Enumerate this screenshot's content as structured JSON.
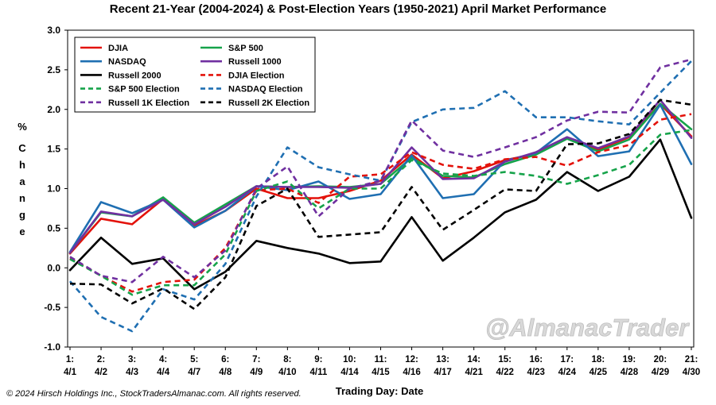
{
  "chart_data": {
    "type": "line",
    "title": "Recent 21-Year (2004-2024) & Post-Election Years (1950-2021) April Market Performance",
    "ylabel": "% Change",
    "xlabel": "Trading Day: Date",
    "ylim": [
      -1.0,
      3.0
    ],
    "yticks": [
      "3.0",
      "2.5",
      "2.0",
      "1.5",
      "1.0",
      "0.5",
      "0.0",
      "-0.5",
      "-1.0"
    ],
    "ytick_values": [
      3.0,
      2.5,
      2.0,
      1.5,
      1.0,
      0.5,
      0.0,
      -0.5,
      -1.0
    ],
    "categories_top": [
      "1:",
      "2:",
      "3:",
      "4:",
      "5:",
      "6:",
      "7:",
      "8:",
      "9:",
      "10:",
      "11:",
      "12:",
      "13:",
      "14:",
      "15:",
      "16:",
      "17:",
      "18:",
      "19:",
      "20:",
      "21:"
    ],
    "categories_bottom": [
      "4/1",
      "4/2",
      "4/3",
      "4/4",
      "4/7",
      "4/8",
      "4/9",
      "4/10",
      "4/11",
      "4/14",
      "4/15",
      "4/16",
      "4/17",
      "4/21",
      "4/22",
      "4/23",
      "4/24",
      "4/25",
      "4/28",
      "4/29",
      "4/30"
    ],
    "grid": false,
    "legend_position": "top-left",
    "series": [
      {
        "name": "DJIA",
        "color": "#e3120b",
        "dash": "solid",
        "values": [
          0.18,
          0.62,
          0.55,
          0.87,
          0.53,
          0.72,
          1.0,
          0.88,
          0.88,
          0.97,
          1.1,
          1.43,
          1.13,
          1.22,
          1.36,
          1.44,
          1.64,
          1.49,
          1.65,
          2.07,
          1.66
        ]
      },
      {
        "name": "S&P 500",
        "color": "#16a34a",
        "dash": "solid",
        "values": [
          0.19,
          0.7,
          0.65,
          0.89,
          0.57,
          0.8,
          1.03,
          1.02,
          1.03,
          1.02,
          1.06,
          1.39,
          1.16,
          1.14,
          1.31,
          1.43,
          1.63,
          1.47,
          1.62,
          2.07,
          1.75
        ]
      },
      {
        "name": "NASDAQ",
        "color": "#1f6fb2",
        "dash": "solid",
        "values": [
          0.2,
          0.83,
          0.69,
          0.86,
          0.51,
          0.72,
          1.03,
          0.98,
          1.09,
          0.87,
          0.93,
          1.42,
          0.88,
          0.93,
          1.35,
          1.45,
          1.75,
          1.41,
          1.47,
          2.06,
          1.31
        ]
      },
      {
        "name": "Russell 1000",
        "color": "#7030a0",
        "dash": "solid",
        "values": [
          0.19,
          0.71,
          0.65,
          0.86,
          0.55,
          0.77,
          1.03,
          1.02,
          1.02,
          1.01,
          1.06,
          1.52,
          1.12,
          1.13,
          1.34,
          1.46,
          1.65,
          1.51,
          1.66,
          2.12,
          1.64
        ]
      },
      {
        "name": "Russell 2000",
        "color": "#000000",
        "dash": "solid",
        "values": [
          -0.03,
          0.38,
          0.05,
          0.12,
          -0.27,
          -0.05,
          0.34,
          0.25,
          0.18,
          0.06,
          0.08,
          0.64,
          0.09,
          0.38,
          0.7,
          0.86,
          1.21,
          0.97,
          1.15,
          1.62,
          0.63
        ]
      },
      {
        "name": "DJIA Election",
        "color": "#e3120b",
        "dash": "dashed",
        "values": [
          0.12,
          -0.1,
          -0.3,
          -0.18,
          -0.15,
          0.25,
          0.98,
          1.0,
          0.82,
          1.15,
          1.18,
          1.46,
          1.3,
          1.25,
          1.37,
          1.4,
          1.29,
          1.46,
          1.55,
          1.87,
          1.94
        ]
      },
      {
        "name": "S&P 500 Election",
        "color": "#16a34a",
        "dash": "dashed",
        "values": [
          0.11,
          -0.1,
          -0.34,
          -0.22,
          -0.22,
          0.17,
          0.97,
          1.09,
          0.75,
          1.0,
          1.0,
          1.36,
          1.19,
          1.16,
          1.21,
          1.16,
          1.06,
          1.17,
          1.3,
          1.68,
          1.74
        ]
      },
      {
        "name": "NASDAQ Election",
        "color": "#1f6fb2",
        "dash": "dashed",
        "values": [
          -0.17,
          -0.62,
          -0.8,
          -0.27,
          -0.4,
          0.05,
          0.9,
          1.52,
          1.27,
          1.18,
          1.1,
          1.84,
          2.0,
          2.02,
          2.23,
          1.9,
          1.9,
          1.85,
          1.81,
          2.21,
          2.61
        ]
      },
      {
        "name": "Russell 1K Election",
        "color": "#7030a0",
        "dash": "dashed",
        "values": [
          0.14,
          -0.1,
          -0.18,
          0.14,
          -0.12,
          0.22,
          1.0,
          1.28,
          0.65,
          1.0,
          1.1,
          1.86,
          1.48,
          1.4,
          1.52,
          1.65,
          1.86,
          1.97,
          1.96,
          2.53,
          2.63
        ]
      },
      {
        "name": "Russell 2K Election",
        "color": "#000000",
        "dash": "dashed",
        "values": [
          -0.2,
          -0.21,
          -0.45,
          -0.26,
          -0.52,
          -0.12,
          0.78,
          1.0,
          0.39,
          0.42,
          0.45,
          1.02,
          0.48,
          0.73,
          0.99,
          0.97,
          1.56,
          1.57,
          1.69,
          2.12,
          2.06
        ]
      }
    ],
    "legend_order": [
      "DJIA",
      "S&P 500",
      "NASDAQ",
      "Russell 1000",
      "Russell 2000",
      "DJIA Election",
      "S&P 500 Election",
      "NASDAQ Election",
      "Russell 1K Election",
      "Russell 2K Election"
    ]
  },
  "watermark": "@AlmanacTrader",
  "copyright": "© 2024 Hirsch Holdings Inc., StockTradersAlmanac.com. All rights reserved."
}
